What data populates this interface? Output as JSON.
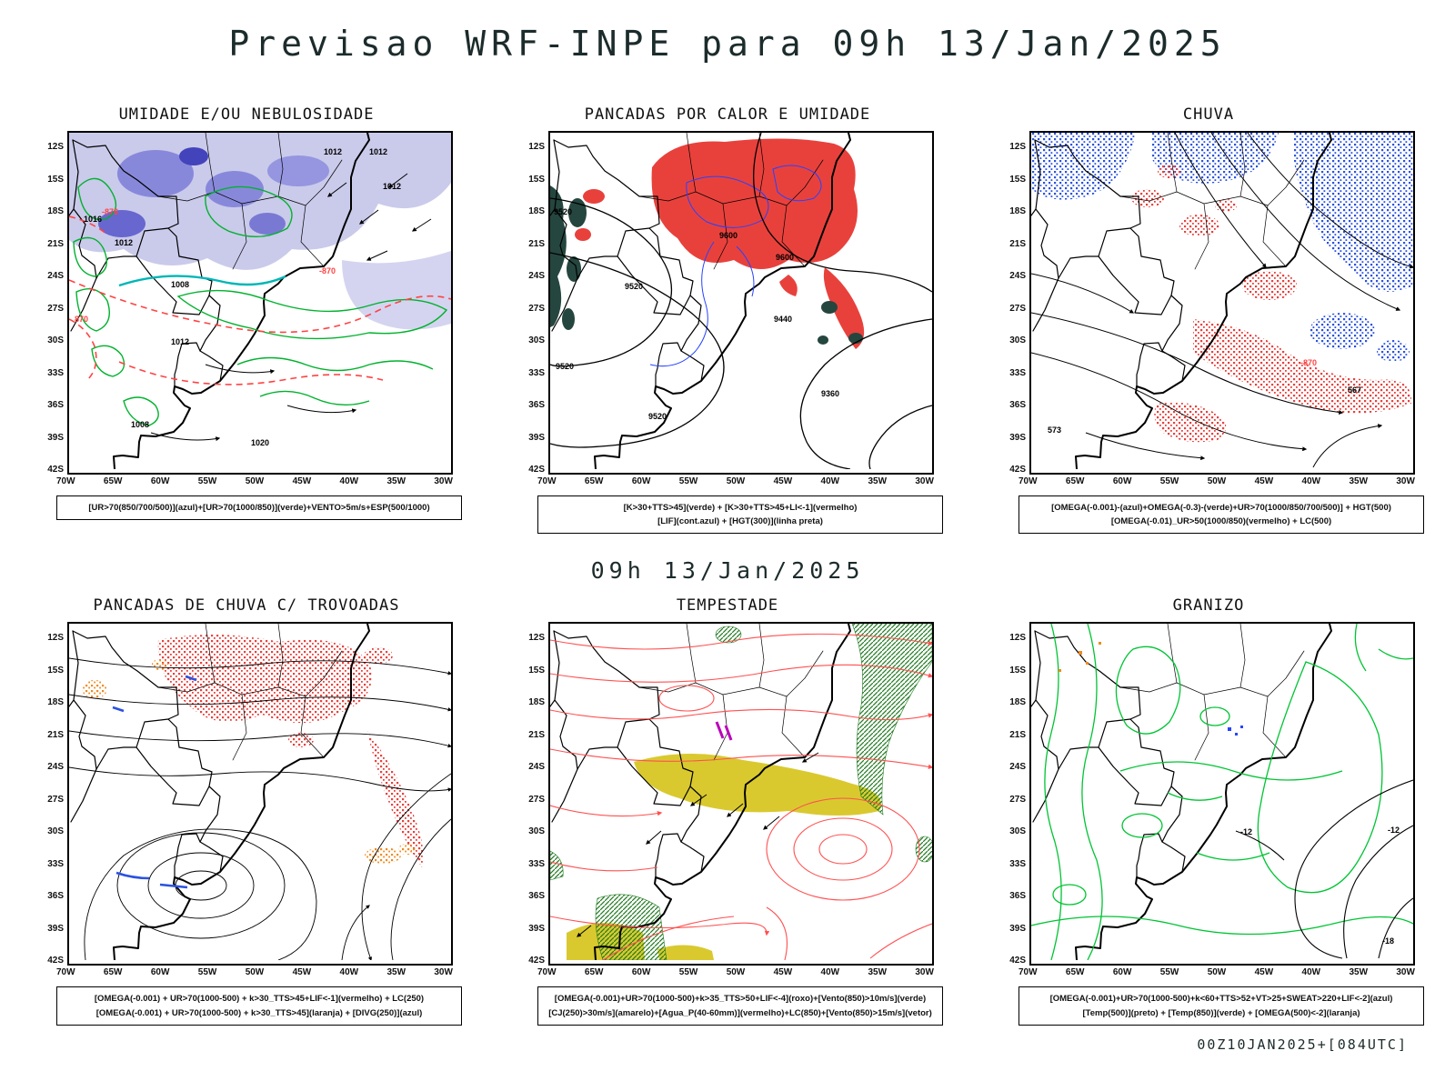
{
  "page": {
    "title": "Previsao WRF-INPE  para 09h 13/Jan/2025",
    "valid_time": "09h 13/Jan/2025",
    "run_stamp": "00Z10JAN2025+[084UTC]"
  },
  "axes": {
    "lat": [
      "12S",
      "15S",
      "18S",
      "21S",
      "24S",
      "27S",
      "30S",
      "33S",
      "36S",
      "39S",
      "42S"
    ],
    "lon": [
      "70W",
      "65W",
      "60W",
      "55W",
      "50W",
      "45W",
      "40W",
      "35W",
      "30W"
    ]
  },
  "colors": {
    "humidity_lavender": "#bdbde6",
    "humidity_blue": "#7d7dd8",
    "green_contour": "#00b22d",
    "red_contour": "#ff4343",
    "teal_contour": "#00b6b6",
    "heat_red": "#e8413c",
    "terrain_teal": "#25463f",
    "lif_blue": "#2743ff",
    "rain_blue": "#2a52e0",
    "storm_orange": "#f08a1e",
    "jet_yellow": "#d9c92f",
    "wind_green": "#1f7a1f",
    "severe_purple": "#bb00bb",
    "storm_red_lines": "#ff5050",
    "hail_green": "#00c433"
  },
  "panels": [
    {
      "id": "umidade",
      "title": "UMIDADE E/OU NEBULOSIDADE",
      "caption_lines": [
        "[UR>70(850/700/500)](azul)+[UR>70(1000/850)](verde)+VENTO>5m/s+ESP(500/1000)"
      ],
      "map_labels": [
        {
          "text": "1012",
          "color": "#000000"
        },
        {
          "text": "1012",
          "color": "#000000"
        },
        {
          "text": "1012",
          "color": "#000000"
        },
        {
          "text": "1016",
          "color": "#000000"
        },
        {
          "text": "1012",
          "color": "#000000"
        },
        {
          "text": "1008",
          "color": "#000000"
        },
        {
          "text": "1012",
          "color": "#000000"
        },
        {
          "text": "1008",
          "color": "#000000"
        },
        {
          "text": "1020",
          "color": "#000000"
        },
        {
          "text": "-870",
          "color": "#ff4343"
        },
        {
          "text": "870",
          "color": "#ff4343"
        },
        {
          "text": "-876",
          "color": "#ff4343"
        }
      ]
    },
    {
      "id": "pancadas-calor",
      "title": "PANCADAS POR CALOR E UMIDADE",
      "caption_lines": [
        "[K>30+TTS>45](verde) + [K>30+TTS>45+LI<-1](vermelho)",
        "[LIF](cont.azul) + [HGT(300)](linha preta)"
      ],
      "map_labels": [
        {
          "text": "9520",
          "color": "#000000"
        },
        {
          "text": "9600",
          "color": "#000000"
        },
        {
          "text": "9600",
          "color": "#000000"
        },
        {
          "text": "9520",
          "color": "#000000"
        },
        {
          "text": "9440",
          "color": "#000000"
        },
        {
          "text": "9360",
          "color": "#000000"
        },
        {
          "text": "9520",
          "color": "#000000"
        },
        {
          "text": "9520",
          "color": "#000000"
        }
      ]
    },
    {
      "id": "chuva",
      "title": "CHUVA",
      "caption_lines": [
        "[OMEGA(-0.001)-(azul)+OMEGA(-0.3)-(verde)+UR>70(1000/850/700/500)] + HGT(500)",
        "[OMEGA(-0.01)_UR>50(1000/850)(vermelho) + LC(500)"
      ],
      "map_labels": [
        {
          "text": "573",
          "color": "#000000"
        },
        {
          "text": "567",
          "color": "#000000"
        },
        {
          "text": "-870",
          "color": "#ff4343"
        }
      ]
    },
    {
      "id": "trovoadas",
      "title": "PANCADAS DE CHUVA C/ TROVOADAS",
      "caption_lines": [
        "[OMEGA(-0.001) + UR>70(1000-500) + k>30_TTS>45+LIF<-1](vermelho) + LC(250)",
        "[OMEGA(-0.001) + UR>70(1000-500) + k>30_TTS>45](laranja) + [DIVG(250)](azul)"
      ],
      "map_labels": []
    },
    {
      "id": "tempestade",
      "title": "TEMPESTADE",
      "caption_lines": [
        "[OMEGA(-0.001)+UR>70(1000-500)+k>35_TTS>50+LIF<-4](roxo)+[Vento(850)>10m/s](verde)",
        "[CJ(250)>30m/s](amarelo)+[Agua_P(40-60mm)](vermelho)+LC(850)+[Vento(850)>15m/s](vetor)"
      ],
      "map_labels": []
    },
    {
      "id": "granizo",
      "title": "GRANIZO",
      "caption_lines": [
        "[OMEGA(-0.001)+UR>70(1000-500)+k<60+TTS>52+VT>25+SWEAT>220+LIF<-2](azul)",
        "[Temp(500)](preto) + [Temp(850)](verde) + [OMEGA(500)<-2](laranja)"
      ],
      "map_labels": [
        {
          "text": "-12",
          "color": "#000000"
        },
        {
          "text": "-12",
          "color": "#000000"
        },
        {
          "text": "-18",
          "color": "#000000"
        }
      ]
    }
  ]
}
